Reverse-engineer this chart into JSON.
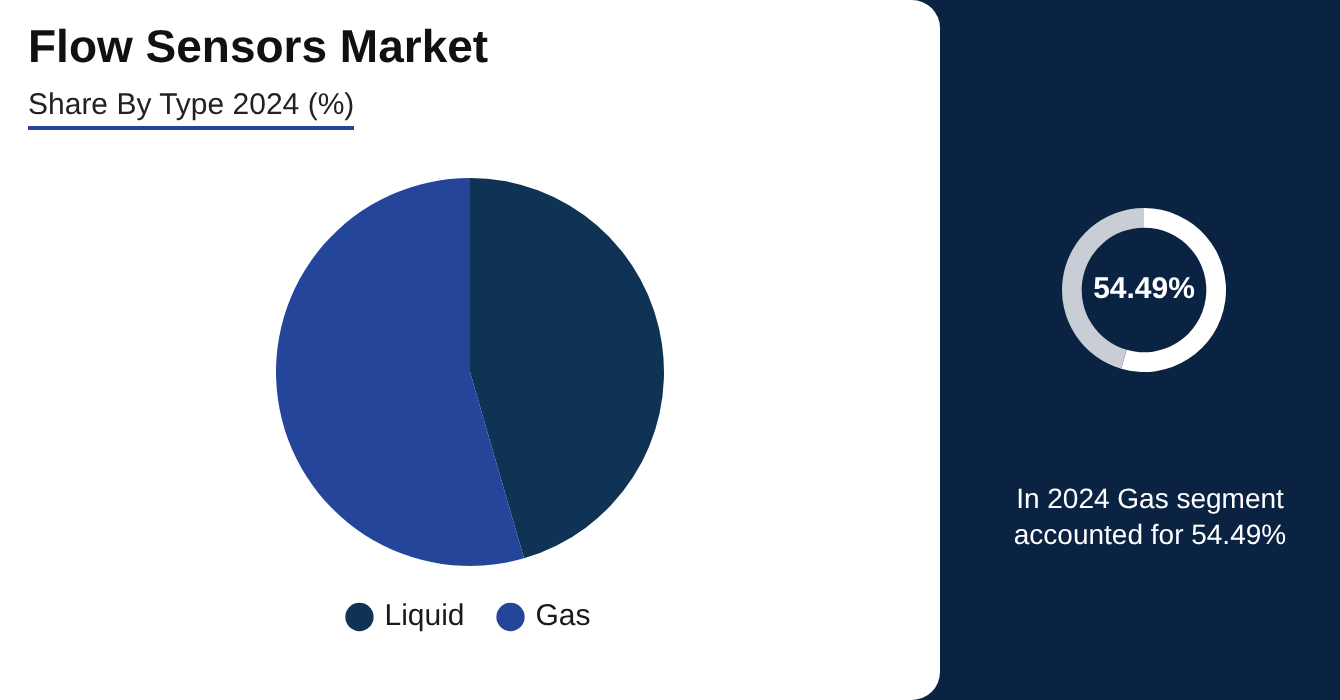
{
  "chart_data": [
    {
      "type": "pie",
      "title": "Flow Sensors Market",
      "subtitle": "Share By Type 2024 (%)",
      "categories": [
        "Liquid",
        "Gas"
      ],
      "values": [
        45.51,
        54.49
      ],
      "colors": [
        "#0e3354",
        "#24459a"
      ],
      "legend": "bottom"
    },
    {
      "type": "donut",
      "categories": [
        null,
        null
      ],
      "values": [
        54.49,
        45.51
      ],
      "colors": [
        "#ffffff",
        "#c9ced6"
      ],
      "annotations": [
        "54.49%",
        "In 2024 Gas segment accounted for 54.49%"
      ]
    }
  ]
}
